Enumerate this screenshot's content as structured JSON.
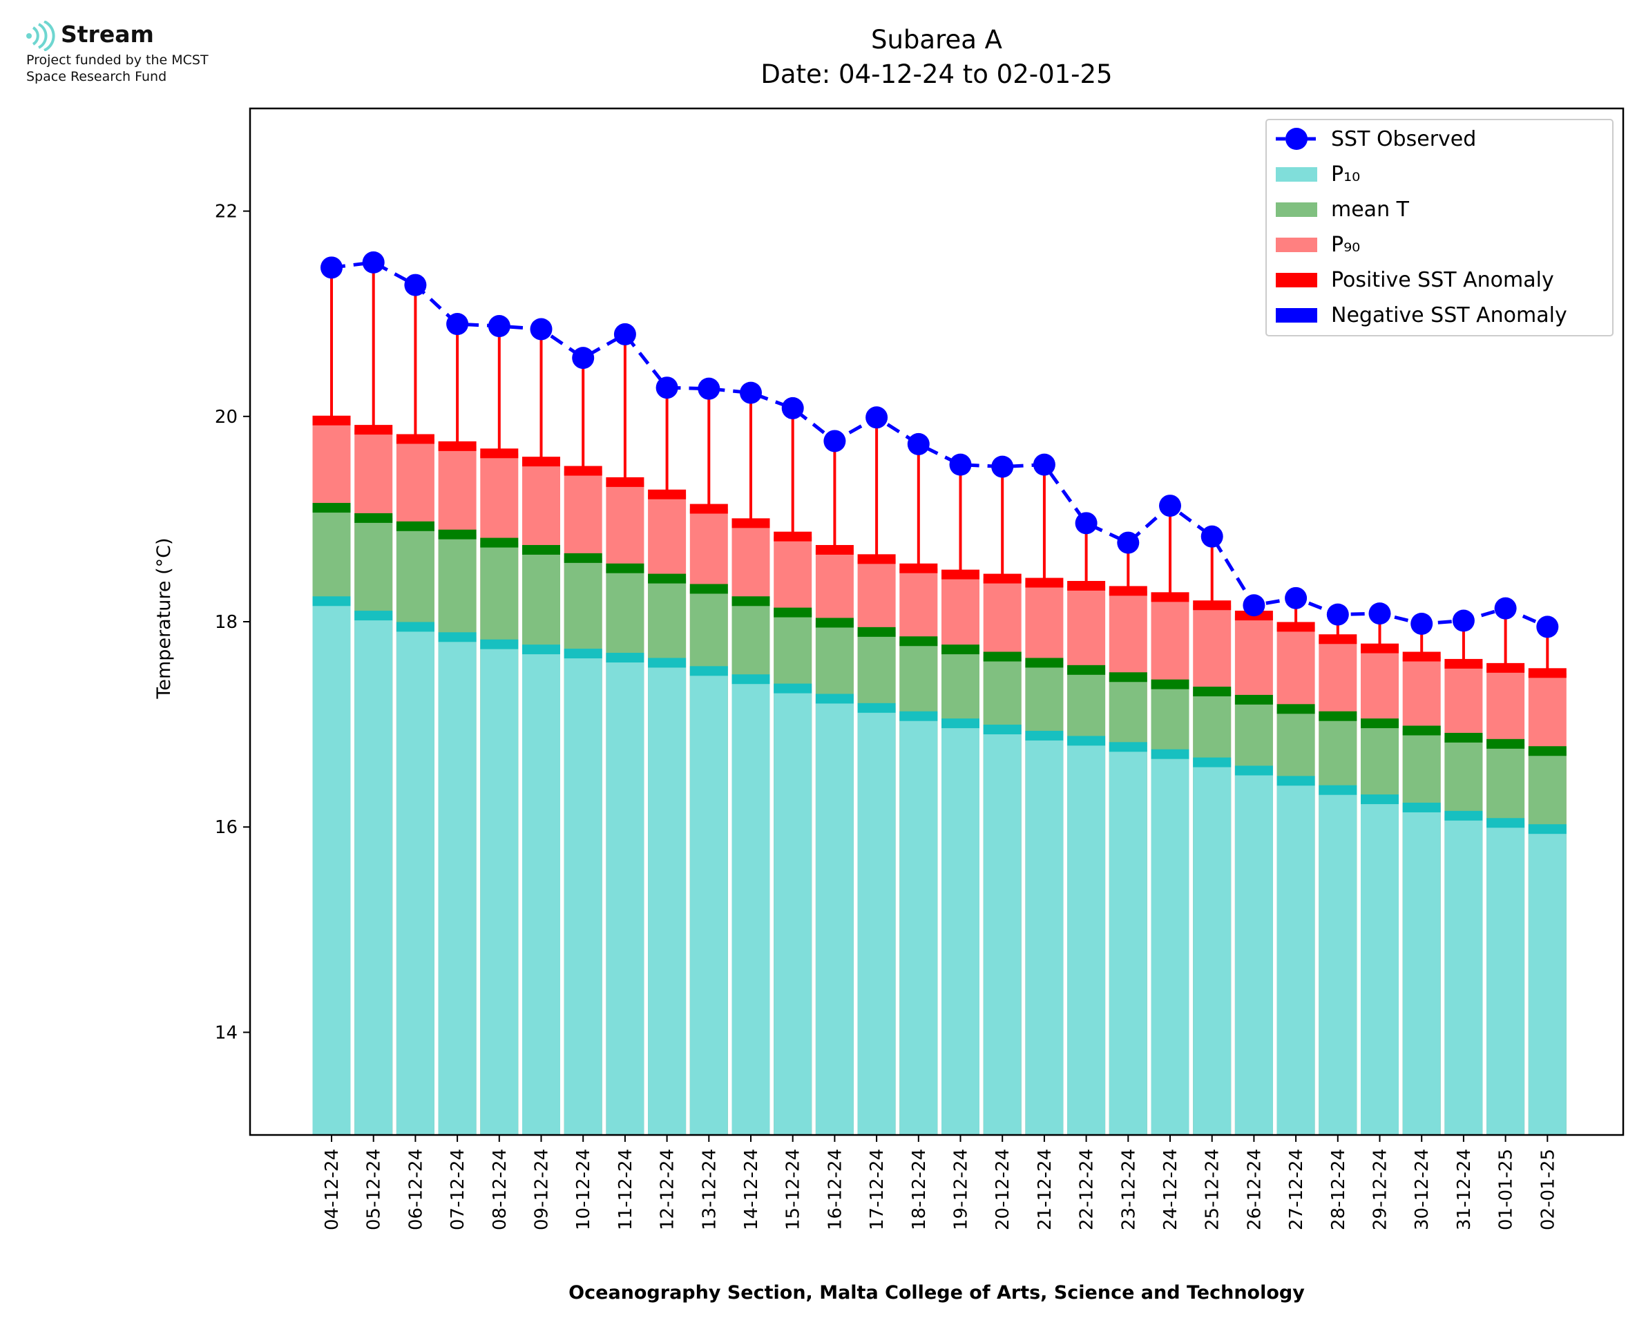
{
  "logo": {
    "name": "Stream",
    "line1": "Project funded by the MCST",
    "line2": "Space Research Fund"
  },
  "chart_data": {
    "type": "bar",
    "title": "Subarea A",
    "subtitle": "Date: 04-12-24 to 02-01-25",
    "xlabel": "Oceanography Section, Malta College of Arts, Science and Technology",
    "ylabel": "Temperature (°C)",
    "ylim": [
      13,
      23
    ],
    "yticks": [
      14,
      16,
      18,
      20,
      22
    ],
    "grid": false,
    "legend_position": "top-right",
    "categories": [
      "04-12-24",
      "05-12-24",
      "06-12-24",
      "07-12-24",
      "08-12-24",
      "09-12-24",
      "10-12-24",
      "11-12-24",
      "12-12-24",
      "13-12-24",
      "14-12-24",
      "15-12-24",
      "16-12-24",
      "17-12-24",
      "18-12-24",
      "19-12-24",
      "20-12-24",
      "21-12-24",
      "22-12-24",
      "23-12-24",
      "24-12-24",
      "25-12-24",
      "26-12-24",
      "27-12-24",
      "28-12-24",
      "29-12-24",
      "30-12-24",
      "31-12-24",
      "01-01-25",
      "02-01-25"
    ],
    "series": [
      {
        "name": "SST Observed",
        "type": "line",
        "color": "#0000ff",
        "values": [
          21.45,
          21.5,
          21.28,
          20.9,
          20.88,
          20.85,
          20.57,
          20.8,
          20.28,
          20.27,
          20.23,
          20.08,
          19.76,
          19.99,
          19.73,
          19.53,
          19.51,
          19.53,
          18.96,
          18.77,
          19.13,
          18.83,
          18.16,
          18.23,
          18.07,
          18.08,
          17.98,
          18.01,
          18.13,
          17.95
        ]
      },
      {
        "name": "P₁₀",
        "type": "bar",
        "color": "#80deda",
        "edge_color": "#17c0c0",
        "values": [
          18.2,
          18.06,
          17.95,
          17.85,
          17.78,
          17.73,
          17.69,
          17.65,
          17.6,
          17.52,
          17.44,
          17.35,
          17.25,
          17.16,
          17.08,
          17.01,
          16.95,
          16.89,
          16.84,
          16.78,
          16.71,
          16.63,
          16.55,
          16.45,
          16.36,
          16.27,
          16.19,
          16.11,
          16.04,
          15.98
        ]
      },
      {
        "name": "mean T",
        "type": "bar",
        "color": "#80c080",
        "edge_color": "#008000",
        "values": [
          19.11,
          19.01,
          18.93,
          18.85,
          18.77,
          18.7,
          18.62,
          18.52,
          18.42,
          18.32,
          18.2,
          18.09,
          17.99,
          17.9,
          17.81,
          17.73,
          17.66,
          17.6,
          17.53,
          17.46,
          17.39,
          17.32,
          17.24,
          17.15,
          17.08,
          17.01,
          16.94,
          16.87,
          16.81,
          16.74
        ]
      },
      {
        "name": "P₉₀",
        "type": "bar",
        "color": "#ff8080",
        "edge_color": "#ff0000",
        "values": [
          19.96,
          19.87,
          19.78,
          19.71,
          19.64,
          19.56,
          19.47,
          19.36,
          19.24,
          19.1,
          18.96,
          18.83,
          18.7,
          18.61,
          18.52,
          18.46,
          18.42,
          18.38,
          18.35,
          18.3,
          18.24,
          18.16,
          18.06,
          17.95,
          17.83,
          17.74,
          17.66,
          17.59,
          17.55,
          17.5
        ]
      }
    ],
    "legend": [
      {
        "label": "SST Observed",
        "kind": "line-marker",
        "color": "#0000ff"
      },
      {
        "label": "P₁₀",
        "kind": "patch",
        "color": "#80deda"
      },
      {
        "label": "mean T",
        "kind": "patch",
        "color": "#80c080"
      },
      {
        "label": "P₉₀",
        "kind": "patch",
        "color": "#ff8080"
      },
      {
        "label": "Positive SST Anomaly",
        "kind": "patch",
        "color": "#ff0000"
      },
      {
        "label": "Negative SST Anomaly",
        "kind": "patch",
        "color": "#0000ff"
      }
    ]
  }
}
